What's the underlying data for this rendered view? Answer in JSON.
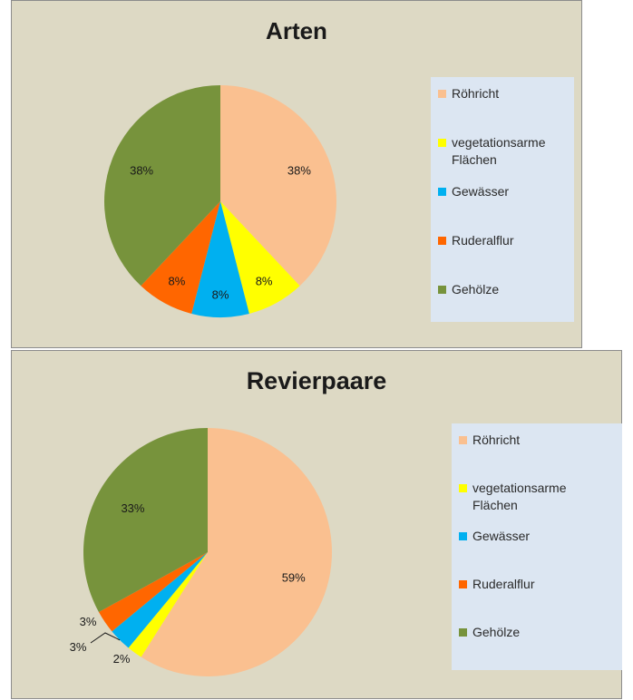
{
  "chart_data": [
    {
      "type": "pie",
      "title": "Arten",
      "categories": [
        "Röhricht",
        "vegetationsarme Flächen",
        "Gewässer",
        "Ruderalflur",
        "Gehölze"
      ],
      "values": [
        38,
        8,
        8,
        8,
        38
      ],
      "data_labels": [
        "38%",
        "8%",
        "8%",
        "8%",
        "38%"
      ],
      "colors": [
        "#fac090",
        "#ffff00",
        "#00b0f0",
        "#ff6600",
        "#77933c"
      ],
      "legend": {
        "placement": "right"
      }
    },
    {
      "type": "pie",
      "title": "Revierpaare",
      "categories": [
        "Röhricht",
        "vegetationsarme Flächen",
        "Gewässer",
        "Ruderalflur",
        "Gehölze"
      ],
      "values": [
        59,
        2,
        3,
        3,
        33
      ],
      "data_labels": [
        "59%",
        "2%",
        "3%",
        "3%",
        "33%"
      ],
      "colors": [
        "#fac090",
        "#ffff00",
        "#00b0f0",
        "#ff6600",
        "#77933c"
      ],
      "legend": {
        "placement": "right"
      }
    }
  ],
  "legend_items": [
    {
      "line1": "Röhricht",
      "line2": ""
    },
    {
      "line1": "vegetationsarme",
      "line2": "Flächen"
    },
    {
      "line1": "Gewässer",
      "line2": ""
    },
    {
      "line1": "Ruderalflur",
      "line2": ""
    },
    {
      "line1": "Gehölze",
      "line2": ""
    }
  ]
}
